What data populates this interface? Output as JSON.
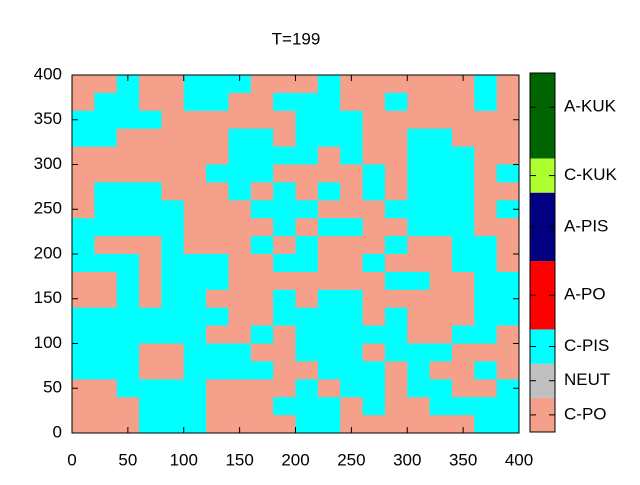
{
  "chart_data": {
    "type": "heatmap",
    "title": "T=199",
    "xlim": [
      0,
      400
    ],
    "ylim": [
      0,
      400
    ],
    "xticks": [
      0,
      50,
      100,
      150,
      200,
      250,
      300,
      350,
      400
    ],
    "yticks": [
      0,
      50,
      100,
      150,
      200,
      250,
      300,
      350,
      400
    ],
    "cblim": [
      0,
      10.5
    ],
    "cbticks": [
      {
        "value": 0.5,
        "label": "C-PO"
      },
      {
        "value": 1.5,
        "label": "NEUT"
      },
      {
        "value": 2.5,
        "label": "C-PIS"
      },
      {
        "value": 4,
        "label": "A-PO"
      },
      {
        "value": 6,
        "label": "A-PIS"
      },
      {
        "value": 7.5,
        "label": "C-KUK"
      },
      {
        "value": 9.5,
        "label": "A-KUK"
      }
    ],
    "palette": [
      {
        "from": 0,
        "to": 1,
        "color": "#f4a08a"
      },
      {
        "from": 1,
        "to": 2,
        "color": "#c0c0c0"
      },
      {
        "from": 2,
        "to": 3,
        "color": "#00ffff"
      },
      {
        "from": 3,
        "to": 5,
        "color": "#ff0000"
      },
      {
        "from": 5,
        "to": 7,
        "color": "#000080"
      },
      {
        "from": 7,
        "to": 8,
        "color": "#adff2f"
      },
      {
        "from": 8,
        "to": 10.5,
        "color": "#006400"
      }
    ],
    "z": [
      [
        0.5,
        0.5,
        2.5,
        0.5,
        0.5,
        2.5,
        2.5,
        2.5,
        0.5,
        0.5,
        0.5,
        2.5,
        0.5,
        0.5,
        0.5,
        0.5,
        0.5,
        0.5,
        2.5,
        0.5
      ],
      [
        0.5,
        2.5,
        2.5,
        0.5,
        0.5,
        2.5,
        2.5,
        0.5,
        0.5,
        2.5,
        2.5,
        2.5,
        0.5,
        0.5,
        2.5,
        0.5,
        0.5,
        0.5,
        2.5,
        0.5
      ],
      [
        2.5,
        2.5,
        2.5,
        2.5,
        0.5,
        0.5,
        0.5,
        0.5,
        0.5,
        0.5,
        2.5,
        2.5,
        2.5,
        0.5,
        0.5,
        0.5,
        0.5,
        0.5,
        0.5,
        0.5
      ],
      [
        2.5,
        2.5,
        0.5,
        0.5,
        0.5,
        0.5,
        0.5,
        2.5,
        2.5,
        0.5,
        2.5,
        2.5,
        2.5,
        0.5,
        0.5,
        2.5,
        2.5,
        0.5,
        0.5,
        0.5
      ],
      [
        0.5,
        0.5,
        0.5,
        0.5,
        0.5,
        0.5,
        0.5,
        2.5,
        2.5,
        2.5,
        2.5,
        0.5,
        2.5,
        0.5,
        0.5,
        2.5,
        2.5,
        2.5,
        0.5,
        0.5
      ],
      [
        0.5,
        0.5,
        0.5,
        0.5,
        0.5,
        0.5,
        2.5,
        2.5,
        2.5,
        0.5,
        0.5,
        0.5,
        0.5,
        2.5,
        0.5,
        2.5,
        2.5,
        2.5,
        0.5,
        2.5
      ],
      [
        0.5,
        2.5,
        2.5,
        2.5,
        0.5,
        0.5,
        0.5,
        2.5,
        0.5,
        2.5,
        0.5,
        2.5,
        0.5,
        2.5,
        0.5,
        2.5,
        2.5,
        2.5,
        0.5,
        0.5
      ],
      [
        0.5,
        2.5,
        2.5,
        2.5,
        2.5,
        0.5,
        0.5,
        0.5,
        2.5,
        2.5,
        2.5,
        0.5,
        0.5,
        0.5,
        2.5,
        2.5,
        2.5,
        2.5,
        0.5,
        2.5
      ],
      [
        2.5,
        2.5,
        2.5,
        2.5,
        2.5,
        0.5,
        0.5,
        0.5,
        0.5,
        2.5,
        0.5,
        2.5,
        2.5,
        0.5,
        0.5,
        2.5,
        2.5,
        2.5,
        0.5,
        0.5
      ],
      [
        2.5,
        0.5,
        0.5,
        0.5,
        2.5,
        0.5,
        0.5,
        0.5,
        2.5,
        0.5,
        2.5,
        0.5,
        0.5,
        0.5,
        2.5,
        0.5,
        0.5,
        2.5,
        2.5,
        0.5
      ],
      [
        2.5,
        2.5,
        2.5,
        0.5,
        2.5,
        2.5,
        2.5,
        0.5,
        0.5,
        2.5,
        2.5,
        0.5,
        0.5,
        2.5,
        0.5,
        0.5,
        0.5,
        2.5,
        2.5,
        0.5
      ],
      [
        0.5,
        0.5,
        2.5,
        0.5,
        2.5,
        2.5,
        2.5,
        0.5,
        0.5,
        0.5,
        0.5,
        0.5,
        0.5,
        0.5,
        2.5,
        2.5,
        0.5,
        0.5,
        2.5,
        2.5
      ],
      [
        0.5,
        0.5,
        2.5,
        0.5,
        2.5,
        2.5,
        0.5,
        0.5,
        0.5,
        2.5,
        0.5,
        2.5,
        2.5,
        0.5,
        0.5,
        0.5,
        0.5,
        0.5,
        2.5,
        2.5
      ],
      [
        2.5,
        2.5,
        2.5,
        2.5,
        2.5,
        2.5,
        2.5,
        0.5,
        0.5,
        2.5,
        2.5,
        2.5,
        2.5,
        0.5,
        2.5,
        0.5,
        0.5,
        0.5,
        2.5,
        2.5
      ],
      [
        2.5,
        2.5,
        2.5,
        2.5,
        2.5,
        2.5,
        0.5,
        0.5,
        2.5,
        0.5,
        2.5,
        2.5,
        2.5,
        2.5,
        2.5,
        0.5,
        0.5,
        2.5,
        2.5,
        0.5
      ],
      [
        2.5,
        2.5,
        2.5,
        0.5,
        0.5,
        2.5,
        2.5,
        2.5,
        0.5,
        0.5,
        2.5,
        2.5,
        2.5,
        0.5,
        2.5,
        2.5,
        2.5,
        0.5,
        0.5,
        0.5
      ],
      [
        2.5,
        2.5,
        2.5,
        0.5,
        0.5,
        2.5,
        2.5,
        2.5,
        2.5,
        0.5,
        0.5,
        2.5,
        2.5,
        2.5,
        0.5,
        2.5,
        0.5,
        0.5,
        2.5,
        0.5
      ],
      [
        0.5,
        0.5,
        2.5,
        2.5,
        2.5,
        2.5,
        0.5,
        0.5,
        0.5,
        0.5,
        2.5,
        0.5,
        2.5,
        2.5,
        0.5,
        2.5,
        2.5,
        0.5,
        0.5,
        2.5
      ],
      [
        0.5,
        0.5,
        0.5,
        2.5,
        2.5,
        2.5,
        0.5,
        0.5,
        0.5,
        2.5,
        2.5,
        2.5,
        0.5,
        2.5,
        0.5,
        0.5,
        2.5,
        2.5,
        2.5,
        2.5
      ],
      [
        0.5,
        0.5,
        0.5,
        2.5,
        2.5,
        2.5,
        0.5,
        0.5,
        0.5,
        0.5,
        2.5,
        2.5,
        0.5,
        0.5,
        0.5,
        0.5,
        0.5,
        0.5,
        2.5,
        2.5
      ]
    ]
  }
}
